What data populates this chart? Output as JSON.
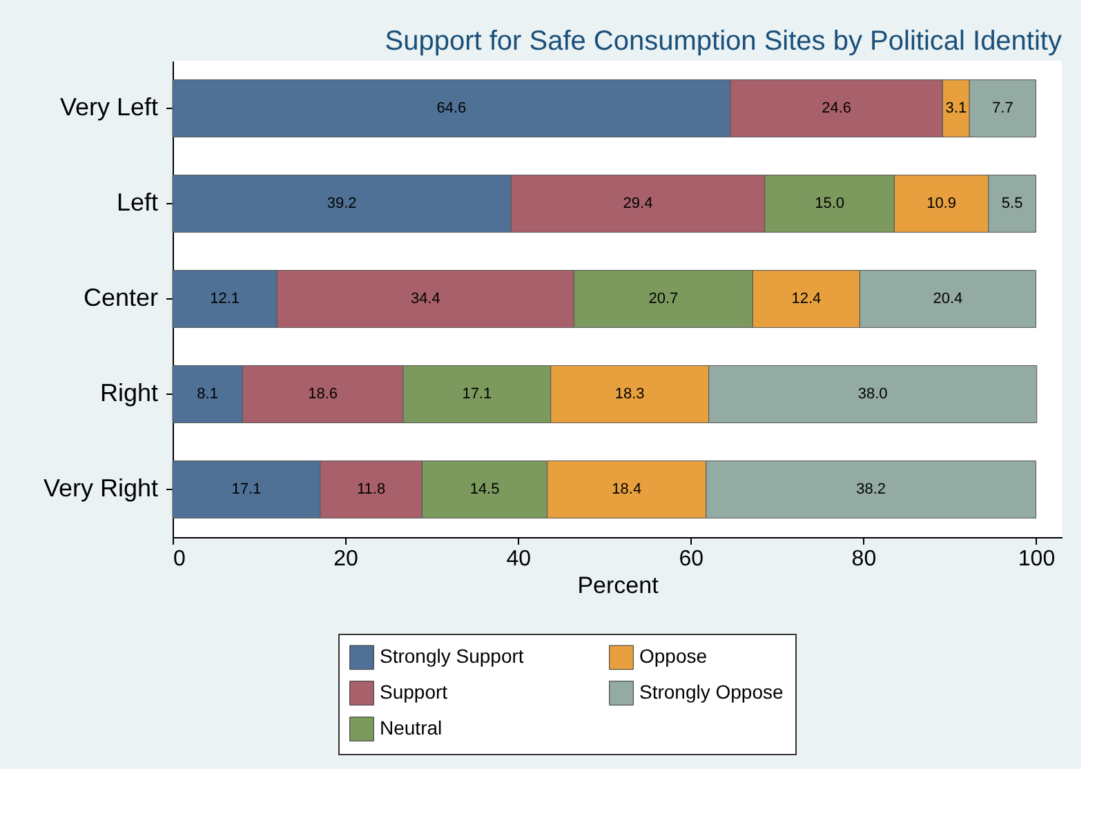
{
  "chart_data": {
    "type": "bar",
    "orientation": "horizontal",
    "stacked": true,
    "title": "Support for Safe Consumption Sites by Political Identity",
    "xlabel": "Percent",
    "categories": [
      "Very Left",
      "Left",
      "Center",
      "Right",
      "Very Right"
    ],
    "series": [
      {
        "name": "Strongly Support",
        "color": "#4e7195",
        "values": [
          64.6,
          39.2,
          12.1,
          8.1,
          17.1
        ],
        "value_labels": [
          "64.6",
          "39.2",
          "12.1",
          "8.1",
          "17.1"
        ]
      },
      {
        "name": "Support",
        "color": "#a8606a",
        "values": [
          24.6,
          29.4,
          34.4,
          18.6,
          11.8
        ],
        "value_labels": [
          "24.6",
          "29.4",
          "34.4",
          "18.6",
          "11.8"
        ]
      },
      {
        "name": "Neutral",
        "color": "#7d9a5e",
        "values": [
          null,
          15.0,
          20.7,
          17.1,
          14.5
        ],
        "value_labels": [
          null,
          "15.0",
          "20.7",
          "17.1",
          "14.5"
        ]
      },
      {
        "name": "Oppose",
        "color": "#e8a03e",
        "values": [
          3.1,
          10.9,
          12.4,
          18.3,
          18.4
        ],
        "value_labels": [
          "3.1",
          "10.9",
          "12.4",
          "18.3",
          "18.4"
        ]
      },
      {
        "name": "Strongly Oppose",
        "color": "#93aba3",
        "values": [
          7.7,
          5.5,
          20.4,
          38.0,
          38.2
        ],
        "value_labels": [
          "7.7",
          "5.5",
          "20.4",
          "38.0",
          "38.2"
        ]
      }
    ],
    "xlim": [
      0,
      103
    ],
    "xticks": [
      0,
      20,
      40,
      60,
      80,
      100
    ],
    "grid": false,
    "legend": "bottom"
  }
}
